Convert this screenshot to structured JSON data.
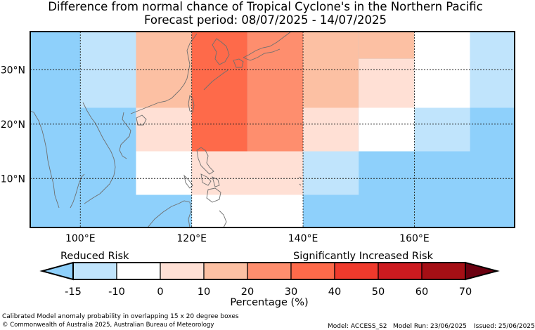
{
  "title_line1": "Difference from normal chance of Tropical Cyclone's in the Northern Pacific",
  "title_line2": "Forecast period: 08/07/2025 - 14/07/2025",
  "map": {
    "lon_range": [
      91,
      178
    ],
    "lat_range": [
      1,
      37
    ],
    "lon_ticks": [
      {
        "value": 100,
        "label": "100°E"
      },
      {
        "value": 120,
        "label": "120°E"
      },
      {
        "value": 140,
        "label": "140°E"
      },
      {
        "value": 160,
        "label": "160°E"
      }
    ],
    "lat_ticks": [
      {
        "value": 10,
        "label": "10°N"
      },
      {
        "value": 20,
        "label": "20°N"
      },
      {
        "value": 30,
        "label": "30°N"
      }
    ],
    "gridlines": "dotted",
    "background_color": "#8ed0fb",
    "cells": [
      {
        "lon": [
          100,
          110
        ],
        "lat": [
          23,
          37
        ],
        "color": "#c0e4fc"
      },
      {
        "lon": [
          110,
          120
        ],
        "lat": [
          23,
          37
        ],
        "color": "#fcc0a3"
      },
      {
        "lon": [
          120,
          130
        ],
        "lat": [
          15,
          37
        ],
        "color": "#fe6a4a"
      },
      {
        "lon": [
          130,
          140
        ],
        "lat": [
          15,
          37
        ],
        "color": "#fe8e6e"
      },
      {
        "lon": [
          140,
          150
        ],
        "lat": [
          23,
          37
        ],
        "color": "#fcc0a3"
      },
      {
        "lon": [
          150,
          160
        ],
        "lat": [
          32,
          37
        ],
        "color": "#fcc0a3"
      },
      {
        "lon": [
          150,
          160
        ],
        "lat": [
          23,
          32
        ],
        "color": "#ffe0d5"
      },
      {
        "lon": [
          160,
          170
        ],
        "lat": [
          23,
          37
        ],
        "color": "#ffffff"
      },
      {
        "lon": [
          170,
          178
        ],
        "lat": [
          23,
          37
        ],
        "color": "#c0e4fc"
      },
      {
        "lon": [
          110,
          120
        ],
        "lat": [
          15,
          23
        ],
        "color": "#ffe0d5"
      },
      {
        "lon": [
          140,
          150
        ],
        "lat": [
          15,
          23
        ],
        "color": "#ffe0d5"
      },
      {
        "lon": [
          150,
          160
        ],
        "lat": [
          15,
          23
        ],
        "color": "#ffffff"
      },
      {
        "lon": [
          160,
          170
        ],
        "lat": [
          15,
          23
        ],
        "color": "#c0e4fc"
      },
      {
        "lon": [
          110,
          120
        ],
        "lat": [
          7,
          15
        ],
        "color": "#ffffff"
      },
      {
        "lon": [
          120,
          140
        ],
        "lat": [
          7,
          15
        ],
        "color": "#ffe0d5"
      },
      {
        "lon": [
          140,
          150
        ],
        "lat": [
          7,
          15
        ],
        "color": "#c0e4fc"
      },
      {
        "lon": [
          120,
          140
        ],
        "lat": [
          1,
          7
        ],
        "color": "#ffffff"
      }
    ]
  },
  "colorbar": {
    "ticks": [
      "-15",
      "-10",
      "0",
      "10",
      "20",
      "30",
      "40",
      "50",
      "60",
      "70"
    ],
    "low_extension_color": "#8ed0fb",
    "high_extension_color": "#6b0010",
    "bins": [
      {
        "from": "-15",
        "to": "-10",
        "color": "#c0e4fc"
      },
      {
        "from": "-10",
        "to": "0",
        "color": "#ffffff"
      },
      {
        "from": "0",
        "to": "10",
        "color": "#ffe0d5"
      },
      {
        "from": "10",
        "to": "20",
        "color": "#fcc0a3"
      },
      {
        "from": "20",
        "to": "30",
        "color": "#fe8e6e"
      },
      {
        "from": "30",
        "to": "40",
        "color": "#fe6a4a"
      },
      {
        "from": "40",
        "to": "50",
        "color": "#f03a2c"
      },
      {
        "from": "50",
        "to": "60",
        "color": "#cc1a1f"
      },
      {
        "from": "60",
        "to": "70",
        "color": "#a50f15"
      }
    ],
    "xlabel": "Percentage (%)",
    "reduced_label": "Reduced Risk",
    "increased_label": "Significantly Increased Risk"
  },
  "footer": {
    "description": "Calibrated Model anomaly probability in overlapping 15 x 20 degree boxes",
    "copyright": "© Commonwealth of Australia 2025, Australian Bureau of Meteorology",
    "model": "Model: ACCESS_S2",
    "model_run": "Model Run: 23/06/2025",
    "issued": "Issued: 25/06/2025"
  }
}
